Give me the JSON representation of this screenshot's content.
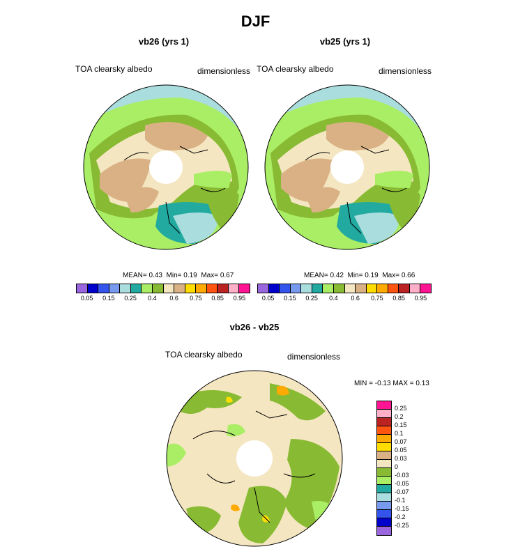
{
  "title": "DJF",
  "panels": [
    {
      "subtitle": "vb26 (yrs 1)",
      "left_label": "TOA clearsky albedo",
      "right_label": "dimensionless",
      "mean_label": "MEAN=",
      "mean": "0.43",
      "min_label": "Min=",
      "min": "0.19",
      "max_label": "Max=",
      "max": "0.67"
    },
    {
      "subtitle": "vb25 (yrs 1)",
      "left_label": "TOA clearsky albedo",
      "right_label": "dimensionless",
      "mean_label": "MEAN=",
      "mean": "0.42",
      "min_label": "Min=",
      "min": "0.19",
      "max_label": "Max=",
      "max": "0.66"
    }
  ],
  "top_colorbar": {
    "colors": [
      "#9966dd",
      "#0000cc",
      "#3355ee",
      "#7799ee",
      "#aadddd",
      "#22aaa0",
      "#aaee66",
      "#88bb33",
      "#f5e6c2",
      "#d9b184",
      "#ffdd00",
      "#ffaa00",
      "#ff5511",
      "#bb2222",
      "#ffb0c8",
      "#ff1493"
    ],
    "ticks": [
      "0.05",
      "0.15",
      "0.25",
      "0.4",
      "0.6",
      "0.75",
      "0.85",
      "0.95"
    ]
  },
  "diff": {
    "subtitle": "vb26 - vb25",
    "left_label": "TOA clearsky albedo",
    "right_label": "dimensionless",
    "min_label": "MIN =",
    "min": "-0.13",
    "max_label": "MAX =",
    "max": "0.13"
  },
  "diff_colorbar": {
    "colors": [
      "#ff1493",
      "#ffb0c8",
      "#bb2222",
      "#ff5511",
      "#ffaa00",
      "#ffdd00",
      "#d9b184",
      "#f5e6c2",
      "#88bb33",
      "#aaee66",
      "#22aaa0",
      "#aadddd",
      "#7799ee",
      "#3355ee",
      "#0000cc",
      "#9966dd"
    ],
    "ticks": [
      "0.25",
      "0.2",
      "0.15",
      "0.1",
      "0.07",
      "0.05",
      "0.03",
      "0",
      "-0.03",
      "-0.05",
      "-0.07",
      "-0.1",
      "-0.15",
      "-0.2",
      "-0.25"
    ]
  },
  "colors": {
    "ocean": "#aadddd",
    "coast_blue": "#22aaa0",
    "green": "#aaee66",
    "olive": "#88bb33",
    "tan": "#d9b184",
    "cream": "#f5e6c2",
    "orange": "#ffaa00"
  }
}
